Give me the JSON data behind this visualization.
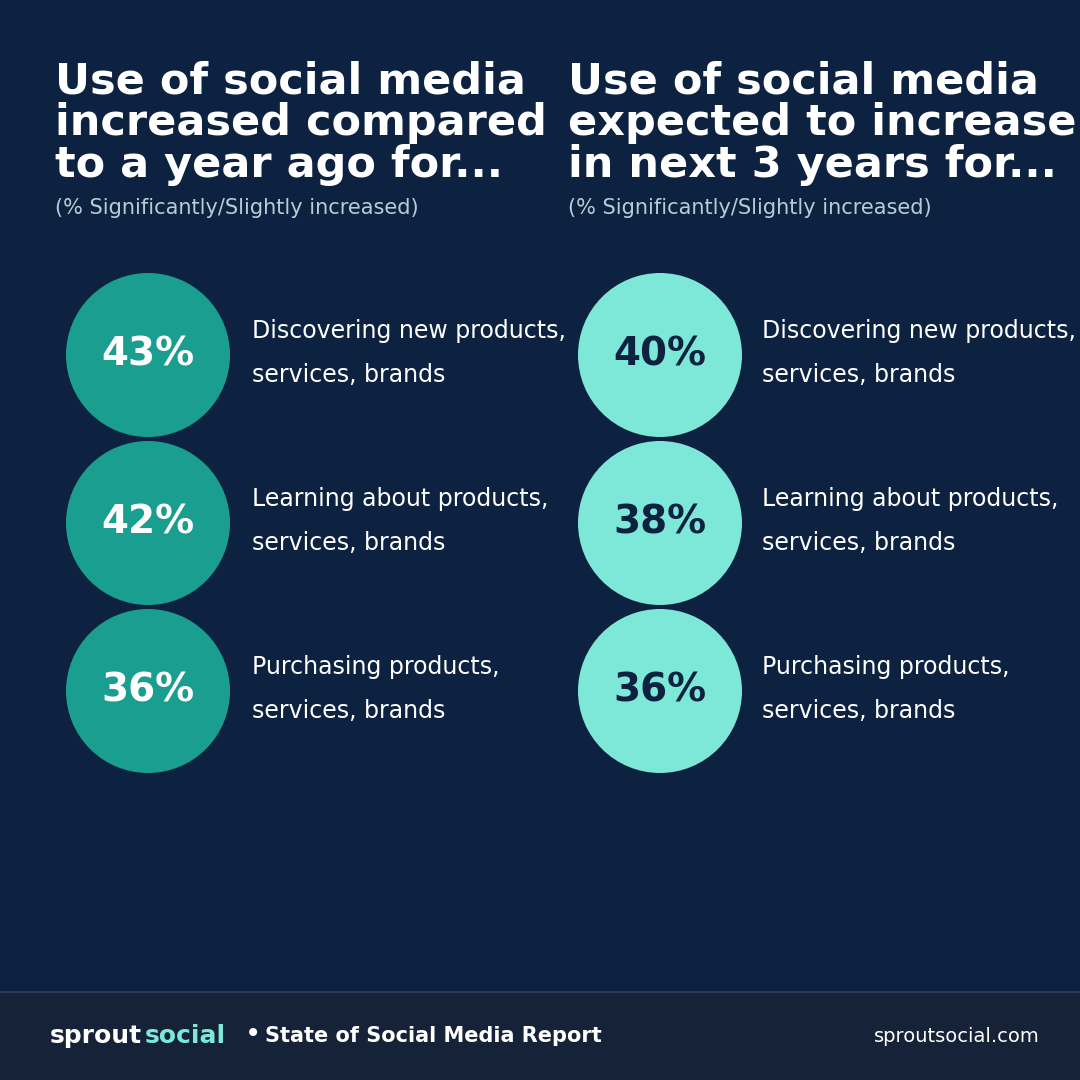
{
  "bg_color": "#0d2240",
  "footer_bg": "#152238",
  "left_title_line1": "Use of social media",
  "left_title_line2": "increased compared",
  "left_title_line3": "to a year ago for...",
  "right_title_line1": "Use of social media",
  "right_title_line2": "expected to increase",
  "right_title_line3": "in next 3 years for...",
  "subtitle": "(% Significantly/Slightly increased)",
  "left_items": [
    {
      "pct": "43%",
      "label_line1": "Discovering new products,",
      "label_line2": "services, brands"
    },
    {
      "pct": "42%",
      "label_line1": "Learning about products,",
      "label_line2": "services, brands"
    },
    {
      "pct": "36%",
      "label_line1": "Purchasing products,",
      "label_line2": "services, brands"
    }
  ],
  "right_items": [
    {
      "pct": "40%",
      "label_line1": "Discovering new products,",
      "label_line2": "services, brands"
    },
    {
      "pct": "38%",
      "label_line1": "Learning about products,",
      "label_line2": "services, brands"
    },
    {
      "pct": "36%",
      "label_line1": "Purchasing products,",
      "label_line2": "services, brands"
    }
  ],
  "left_circle_color": "#1a9e8f",
  "right_circle_color": "#7de8d8",
  "left_pct_text_color": "#ffffff",
  "right_pct_text_color": "#0d2240",
  "label_text_color": "#ffffff",
  "title_color": "#ffffff",
  "subtitle_color": "#b8ccd8",
  "footer_text_color": "#ffffff",
  "footer_social_color": "#7de8d8",
  "footer_report": "State of Social Media Report",
  "footer_url": "sproutsocial.com",
  "footer_divider_color": "#2a4060"
}
